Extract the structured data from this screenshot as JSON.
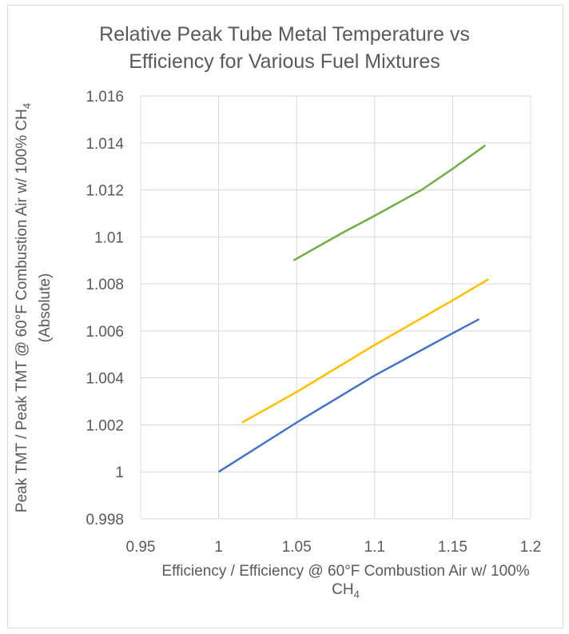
{
  "chart_data": {
    "type": "line",
    "title_line1": "Relative Peak Tube Metal Temperature vs",
    "title_line2": "Efficiency for Various Fuel Mixtures",
    "xlabel_main": "Efficiency / Efficiency @ 60°F Combustion Air w/ 100%",
    "xlabel_tail": "CH",
    "xlabel_sub": "4",
    "ylabel_main": "Peak TMT / Peak TMT @ 60°F Combustion Air w/ 100% CH",
    "ylabel_sub": "4",
    "ylabel_tail": "(Absolute)",
    "xlim": [
      0.95,
      1.2
    ],
    "ylim": [
      0.998,
      1.016
    ],
    "x_ticks": [
      "0.95",
      "1",
      "1.05",
      "1.1",
      "1.15",
      "1.2"
    ],
    "y_ticks": [
      "0.998",
      "1",
      "1.002",
      "1.004",
      "1.006",
      "1.008",
      "1.01",
      "1.012",
      "1.014",
      "1.016"
    ],
    "grid": "vertical-and-horizontal",
    "legend": "none",
    "series": [
      {
        "color": "#4472c4",
        "points": [
          [
            1.0,
            1.0
          ],
          [
            1.05,
            1.0021
          ],
          [
            1.1,
            1.0041
          ],
          [
            1.15,
            1.0059
          ],
          [
            1.167,
            1.0065
          ]
        ]
      },
      {
        "color": "#ffc000",
        "points": [
          [
            1.015,
            1.0021
          ],
          [
            1.05,
            1.0034
          ],
          [
            1.1,
            1.0054
          ],
          [
            1.15,
            1.0073
          ],
          [
            1.173,
            1.0082
          ]
        ]
      },
      {
        "color": "#70ad47",
        "points": [
          [
            1.048,
            1.009
          ],
          [
            1.08,
            1.0102
          ],
          [
            1.1,
            1.0109
          ],
          [
            1.13,
            1.012
          ],
          [
            1.15,
            1.0129
          ],
          [
            1.171,
            1.0139
          ]
        ]
      }
    ]
  }
}
